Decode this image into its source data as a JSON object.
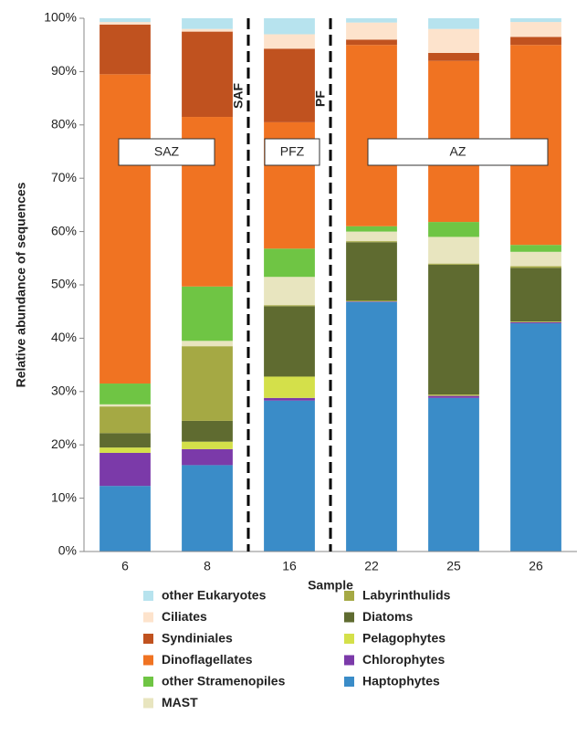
{
  "chart_data": {
    "type": "stacked-bar",
    "x_label": "Sample",
    "y_label": "Relative abundance of sequences",
    "categories": [
      "6",
      "8",
      "16",
      "22",
      "25",
      "26"
    ],
    "ylim": [
      0,
      100
    ],
    "yticks": [
      {
        "value": 0,
        "label": "0%"
      },
      {
        "value": 10,
        "label": "10%"
      },
      {
        "value": 20,
        "label": "20%"
      },
      {
        "value": 30,
        "label": "30%"
      },
      {
        "value": 40,
        "label": "40%"
      },
      {
        "value": 50,
        "label": "50%"
      },
      {
        "value": 60,
        "label": "60%"
      },
      {
        "value": 70,
        "label": "70%"
      },
      {
        "value": 80,
        "label": "80%"
      },
      {
        "value": 90,
        "label": "90%"
      },
      {
        "value": 100,
        "label": "100%"
      }
    ],
    "series": [
      {
        "name": "other Eukaryotes",
        "color": "#b7e3ee",
        "values": [
          0.7,
          2.0,
          3.0,
          0.8,
          2.0,
          0.7
        ]
      },
      {
        "name": "Ciliates",
        "color": "#fde3cc",
        "values": [
          0.5,
          0.5,
          2.7,
          3.2,
          4.5,
          2.8
        ]
      },
      {
        "name": "Syndiniales",
        "color": "#c0521f",
        "values": [
          9.3,
          16.0,
          13.8,
          1.0,
          1.5,
          1.5
        ]
      },
      {
        "name": "Dinoflagellates",
        "color": "#f07322",
        "values": [
          58.0,
          31.8,
          23.7,
          34.0,
          30.2,
          37.5
        ]
      },
      {
        "name": "other Stramenopiles",
        "color": "#6fc544",
        "values": [
          3.9,
          10.2,
          5.3,
          1.0,
          2.8,
          1.3
        ]
      },
      {
        "name": "MAST",
        "color": "#e8e5bf",
        "values": [
          0.4,
          1.0,
          5.3,
          1.8,
          5.0,
          2.7
        ]
      },
      {
        "name": "Labyrinthulids",
        "color": "#a5a944",
        "values": [
          5.0,
          14.0,
          0.2,
          0.2,
          0.2,
          0.3
        ]
      },
      {
        "name": "Diatoms",
        "color": "#5f6b30",
        "values": [
          2.7,
          3.9,
          13.2,
          11.0,
          24.4,
          10.1
        ]
      },
      {
        "name": "Pelagophytes",
        "color": "#d4e04a",
        "values": [
          1.0,
          1.4,
          4.0,
          0.1,
          0.2,
          0.1
        ]
      },
      {
        "name": "Chlorophytes",
        "color": "#7b3aa9",
        "values": [
          6.2,
          3.0,
          0.5,
          0.1,
          0.4,
          0.2
        ]
      },
      {
        "name": "Haptophytes",
        "color": "#3a8cc8",
        "values": [
          12.3,
          16.2,
          28.3,
          46.8,
          28.8,
          42.8
        ]
      }
    ],
    "annotations": [
      "SAZ",
      "PFZ",
      "AZ",
      "SAF",
      "PF"
    ]
  }
}
